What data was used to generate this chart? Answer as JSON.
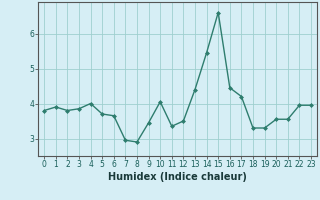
{
  "x": [
    0,
    1,
    2,
    3,
    4,
    5,
    6,
    7,
    8,
    9,
    10,
    11,
    12,
    13,
    14,
    15,
    16,
    17,
    18,
    19,
    20,
    21,
    22,
    23
  ],
  "y": [
    3.8,
    3.9,
    3.8,
    3.85,
    4.0,
    3.7,
    3.65,
    2.95,
    2.9,
    3.45,
    4.05,
    3.35,
    3.5,
    4.4,
    5.45,
    6.6,
    4.45,
    4.2,
    3.3,
    3.3,
    3.55,
    3.55,
    3.95,
    3.95
  ],
  "line_color": "#2e7d6e",
  "marker": "D",
  "marker_size": 2.0,
  "bg_color": "#d6eef5",
  "grid_color": "#9ecfcf",
  "xlabel": "Humidex (Indice chaleur)",
  "xlim": [
    -0.5,
    23.5
  ],
  "ylim": [
    2.5,
    6.9
  ],
  "yticks": [
    3,
    4,
    5,
    6
  ],
  "xticks": [
    0,
    1,
    2,
    3,
    4,
    5,
    6,
    7,
    8,
    9,
    10,
    11,
    12,
    13,
    14,
    15,
    16,
    17,
    18,
    19,
    20,
    21,
    22,
    23
  ],
  "tick_fontsize": 5.5,
  "xlabel_fontsize": 7.0,
  "line_width": 1.0,
  "spine_color": "#555555"
}
